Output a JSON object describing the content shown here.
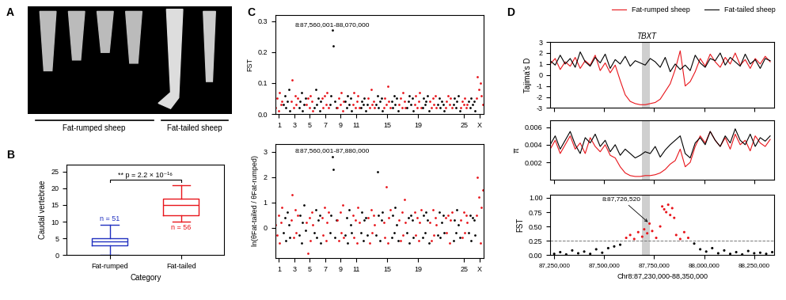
{
  "image": {
    "panel": "A",
    "groups": [
      "Fat-rumped sheep",
      "Fat-tailed sheep"
    ]
  },
  "chart_data": [
    {
      "panel": "B",
      "type": "box",
      "categories": [
        "Fat-rumped",
        "Fat-tailed"
      ],
      "xlabel": "Category",
      "ylabel": "Caudal vertebrae",
      "boxes": [
        {
          "whislo": 0,
          "q1": 3,
          "med": 4,
          "q3": 5,
          "whishi": 9
        },
        {
          "whislo": 10,
          "q1": 12,
          "med": 15,
          "q3": 17,
          "whishi": 21
        }
      ],
      "n_labels": [
        "n = 51",
        "n = 56"
      ],
      "colors": [
        "#2030c0",
        "#e8151b"
      ],
      "annotation": "** p = 2.2 × 10⁻¹⁶",
      "ylim": [
        0,
        27
      ],
      "yticks": [
        0,
        5,
        10,
        15,
        20,
        25
      ]
    },
    {
      "panel": "C",
      "type": "scatter",
      "ylabel": "FST",
      "categories": [
        "1",
        null,
        "3",
        null,
        "5",
        null,
        "7",
        null,
        "9",
        null,
        "11",
        null,
        null,
        null,
        "15",
        null,
        null,
        null,
        "19",
        null,
        null,
        null,
        null,
        null,
        "25",
        null,
        "X"
      ],
      "colors": [
        "#e8151b",
        "#000000"
      ],
      "values": [
        [
          0.02,
          0.05,
          0.01,
          0.07,
          0.03,
          0.04
        ],
        [
          0.03,
          0.06,
          0.02,
          0.04,
          0.08,
          0.01
        ],
        [
          0.04,
          0.11,
          0.02,
          0.06,
          0.03,
          0.05
        ],
        [
          0.02,
          0.04,
          0.07,
          0.01,
          0.03,
          0.05
        ],
        [
          0.03,
          0.05,
          0.02,
          0.06,
          0.04,
          0.01
        ],
        [
          0.02,
          0.08,
          0.03,
          0.05,
          0.01,
          0.04
        ],
        [
          0.05,
          0.02,
          0.06,
          0.03,
          0.07,
          0.02
        ],
        [
          0.03,
          0.06,
          0.27,
          0.22,
          0.04,
          0.02
        ],
        [
          0.02,
          0.05,
          0.03,
          0.07,
          0.01,
          0.04
        ],
        [
          0.04,
          0.02,
          0.06,
          0.03,
          0.05,
          0.01
        ],
        [
          0.03,
          0.07,
          0.02,
          0.04,
          0.06,
          0.02
        ],
        [
          0.02,
          0.04,
          0.03,
          0.05,
          0.01,
          0.03
        ],
        [
          0.05,
          0.02,
          0.08,
          0.03,
          0.04,
          0.02
        ],
        [
          0.03,
          0.06,
          0.02,
          0.04,
          0.05,
          0.01
        ],
        [
          0.02,
          0.05,
          0.03,
          0.09,
          0.04,
          0.02
        ],
        [
          0.04,
          0.02,
          0.06,
          0.03,
          0.05,
          0.01
        ],
        [
          0.03,
          0.05,
          0.02,
          0.07,
          0.04,
          0.02
        ],
        [
          0.02,
          0.04,
          0.06,
          0.03,
          0.05,
          0.01
        ],
        [
          0.03,
          0.06,
          0.02,
          0.04,
          0.07,
          0.02
        ],
        [
          0.02,
          0.05,
          0.03,
          0.04,
          0.06,
          0.01
        ],
        [
          0.04,
          0.02,
          0.05,
          0.03,
          0.06,
          0.02
        ],
        [
          0.03,
          0.05,
          0.02,
          0.04,
          0.03,
          0.01
        ],
        [
          0.02,
          0.04,
          0.06,
          0.03,
          0.05,
          0.02
        ],
        [
          0.03,
          0.05,
          0.02,
          0.04,
          0.06,
          0.01
        ],
        [
          0.02,
          0.04,
          0.03,
          0.05,
          0.02,
          0.03
        ],
        [
          0.04,
          0.02,
          0.05,
          0.03,
          0.04,
          0.01
        ],
        [
          0.05,
          0.12,
          0.08,
          0.1,
          0.06,
          0.03
        ]
      ],
      "annotation": "8:87,560,001-88,070,000",
      "ylim": [
        0,
        0.32
      ],
      "yticks": [
        {
          "value": 0,
          "label": "0.0"
        },
        0.1,
        0.2,
        0.3
      ]
    },
    {
      "panel": "C",
      "type": "scatter",
      "ylabel": "ln(θFat-tailed / θFat-rumped)",
      "categories": [
        "1",
        null,
        "3",
        null,
        "5",
        null,
        "7",
        null,
        "9",
        null,
        "11",
        null,
        null,
        null,
        "15",
        null,
        null,
        null,
        "19",
        null,
        null,
        null,
        null,
        null,
        "25",
        null,
        "X"
      ],
      "colors": [
        "#e8151b",
        "#000000"
      ],
      "values": [
        [
          0.1,
          -0.3,
          0.5,
          -0.6,
          0.2,
          0.8
        ],
        [
          -0.2,
          0.4,
          -0.5,
          0.6,
          0.1,
          -0.4
        ],
        [
          0.3,
          1.3,
          -0.4,
          0.7,
          -0.2,
          0.5
        ],
        [
          -0.3,
          0.5,
          -0.6,
          0.2,
          0.9,
          -0.1
        ],
        [
          0.2,
          -1.0,
          0.4,
          -0.5,
          0.6,
          0.1
        ],
        [
          -0.2,
          0.7,
          -0.4,
          0.3,
          0.5,
          -0.6
        ],
        [
          0.4,
          -0.3,
          0.8,
          -0.5,
          0.2,
          0.6
        ],
        [
          -0.2,
          0.5,
          2.8,
          2.3,
          -0.4,
          0.3
        ],
        [
          0.3,
          -0.5,
          0.6,
          -0.2,
          0.9,
          -0.4
        ],
        [
          -0.3,
          0.4,
          -0.6,
          0.7,
          0.1,
          -0.2
        ],
        [
          0.5,
          -0.4,
          0.3,
          -0.6,
          0.8,
          0.2
        ],
        [
          -0.2,
          0.6,
          -0.5,
          0.3,
          0.4,
          -0.3
        ],
        [
          0.4,
          -0.6,
          0.7,
          -0.2,
          0.5,
          0.1
        ],
        [
          -0.3,
          2.2,
          0.5,
          -0.5,
          0.3,
          0.6
        ],
        [
          0.2,
          -0.4,
          1.6,
          -0.6,
          0.4,
          0.7
        ],
        [
          -0.4,
          0.5,
          -0.2,
          0.8,
          0.1,
          -0.5
        ],
        [
          0.3,
          -0.5,
          0.6,
          -0.3,
          1.1,
          0.2
        ],
        [
          -0.2,
          0.4,
          -0.6,
          0.5,
          0.3,
          -0.4
        ],
        [
          0.6,
          -0.3,
          0.4,
          -0.5,
          0.2,
          0.7
        ],
        [
          -0.4,
          0.5,
          -0.2,
          0.6,
          0.3,
          -0.6
        ],
        [
          0.2,
          -0.5,
          0.7,
          -0.3,
          0.4,
          0.1
        ],
        [
          -0.3,
          0.6,
          -0.4,
          0.2,
          0.5,
          -0.2
        ],
        [
          0.4,
          -0.2,
          0.5,
          -0.6,
          0.3,
          0.6
        ],
        [
          -0.5,
          0.3,
          -0.2,
          0.7,
          0.1,
          -0.4
        ],
        [
          0.3,
          -0.4,
          0.6,
          -0.2,
          0.5,
          0.2
        ],
        [
          -0.2,
          0.5,
          -0.5,
          0.4,
          0.3,
          -0.3
        ],
        [
          0.5,
          2.0,
          1.2,
          -0.6,
          0.8,
          1.5
        ]
      ],
      "annotation": "8:87,560,001-87,880,000",
      "ylim": [
        -1.2,
        3.3
      ],
      "yticks": [
        0,
        1,
        2,
        3
      ]
    },
    {
      "panel": "D",
      "type": "line",
      "legend": "upper right",
      "x": [
        87230000,
        87255000,
        87280000,
        87305000,
        87330000,
        87355000,
        87380000,
        87405000,
        87430000,
        87455000,
        87480000,
        87505000,
        87530000,
        87555000,
        87580000,
        87605000,
        87630000,
        87655000,
        87680000,
        87705000,
        87730000,
        87755000,
        87780000,
        87805000,
        87830000,
        87855000,
        87880000,
        87905000,
        87930000,
        87955000,
        87980000,
        88005000,
        88030000,
        88055000,
        88080000,
        88105000,
        88130000,
        88155000,
        88180000,
        88205000,
        88230000,
        88255000,
        88280000,
        88305000,
        88330000
      ],
      "series": [
        {
          "name": "Fat-rumped sheep",
          "color": "#e8151b",
          "tajima_d": [
            1.0,
            1.5,
            0.5,
            1.2,
            0.8,
            1.6,
            0.6,
            1.3,
            0.9,
            1.8,
            0.4,
            1.1,
            0.2,
            0.9,
            -0.5,
            -1.8,
            -2.4,
            -2.6,
            -2.7,
            -2.7,
            -2.6,
            -2.5,
            -2.2,
            -1.5,
            -0.8,
            0.5,
            2.2,
            -1.0,
            -0.6,
            0.3,
            1.5,
            0.8,
            1.9,
            1.2,
            0.7,
            1.6,
            1.0,
            2.0,
            0.9,
            1.4,
            0.6,
            1.5,
            1.0,
            1.7,
            1.2
          ],
          "pi": [
            0.0035,
            0.0045,
            0.003,
            0.004,
            0.005,
            0.0035,
            0.0042,
            0.003,
            0.0048,
            0.0038,
            0.0032,
            0.004,
            0.0028,
            0.0025,
            0.0015,
            0.0008,
            0.0005,
            0.0004,
            0.0004,
            0.0005,
            0.0005,
            0.0006,
            0.0008,
            0.0012,
            0.0018,
            0.0022,
            0.0035,
            0.0015,
            0.002,
            0.0038,
            0.005,
            0.0042,
            0.0055,
            0.0045,
            0.0038,
            0.0048,
            0.0035,
            0.0052,
            0.004,
            0.0045,
            0.0033,
            0.005,
            0.0042,
            0.0038,
            0.0046
          ]
        },
        {
          "name": "Fat-tailed sheep",
          "color": "#000000",
          "tajima_d": [
            1.3,
            0.9,
            1.8,
            1.0,
            1.5,
            0.7,
            2.1,
            1.2,
            0.8,
            1.6,
            1.1,
            1.9,
            0.6,
            1.4,
            1.0,
            1.7,
            0.8,
            1.3,
            1.1,
            0.9,
            1.5,
            1.2,
            0.7,
            1.6,
            0.3,
            1.0,
            0.5,
            0.9,
            0.4,
            1.8,
            1.1,
            0.7,
            1.5,
            1.3,
            2.0,
            0.9,
            1.6,
            1.2,
            0.8,
            1.9,
            1.0,
            1.4,
            0.6,
            1.5,
            1.3
          ],
          "pi": [
            0.004,
            0.005,
            0.0035,
            0.0045,
            0.0055,
            0.004,
            0.003,
            0.0048,
            0.0042,
            0.0052,
            0.0038,
            0.0045,
            0.0032,
            0.004,
            0.0028,
            0.0035,
            0.003,
            0.0025,
            0.0028,
            0.0032,
            0.003,
            0.0038,
            0.0026,
            0.0034,
            0.004,
            0.0045,
            0.005,
            0.003,
            0.0025,
            0.0042,
            0.0048,
            0.004,
            0.0055,
            0.0045,
            0.0038,
            0.005,
            0.0042,
            0.0058,
            0.0045,
            0.004,
            0.0052,
            0.0038,
            0.0048,
            0.0044,
            0.005
          ]
        }
      ],
      "tajima_d": {
        "ylabel": "Tajima's D",
        "ylim": [
          -3,
          3
        ],
        "yticks": [
          -3,
          -2,
          -1,
          0,
          1,
          2,
          3
        ]
      },
      "pi": {
        "ylabel": "π",
        "ylim": [
          0,
          0.0068
        ],
        "yticks": [
          0.002,
          0.004,
          0.006
        ]
      },
      "fst": {
        "ylabel": "FST",
        "threshold": 0.25,
        "colors": [
          "#000000",
          "#e8151b"
        ],
        "x": [
          87250000,
          87280000,
          87310000,
          87340000,
          87370000,
          87400000,
          87430000,
          87460000,
          87490000,
          87520000,
          87550000,
          87580000,
          87610000,
          87630000,
          87650000,
          87670000,
          87690000,
          87700000,
          87715000,
          87726520,
          87740000,
          87760000,
          87780000,
          87790000,
          87800000,
          87810000,
          87820000,
          87830000,
          87840000,
          87850000,
          87860000,
          87880000,
          87900000,
          87920000,
          87950000,
          87980000,
          88010000,
          88040000,
          88070000,
          88100000,
          88130000,
          88160000,
          88190000,
          88220000,
          88250000,
          88280000,
          88310000,
          88340000
        ],
        "values": [
          0.02,
          0.05,
          0.01,
          0.08,
          0.03,
          0.06,
          0.02,
          0.1,
          0.04,
          0.12,
          0.15,
          0.18,
          0.3,
          0.35,
          0.28,
          0.4,
          0.32,
          0.45,
          0.38,
          0.55,
          0.42,
          0.3,
          0.5,
          0.85,
          0.8,
          0.75,
          0.88,
          0.7,
          0.82,
          0.65,
          0.35,
          0.28,
          0.4,
          0.3,
          0.2,
          0.1,
          0.06,
          0.12,
          0.03,
          0.08,
          0.02,
          0.05,
          0.01,
          0.07,
          0.03,
          0.04,
          0.02,
          0.05
        ],
        "annotation": {
          "text": "8:87,726,520",
          "x": 87726520
        },
        "ylim": [
          0,
          1.05
        ],
        "yticks": [
          {
            "value": 0,
            "label": "0.00"
          },
          0.25,
          {
            "value": 0.5,
            "label": "0.50"
          },
          0.75,
          {
            "value": 1,
            "label": "1.00"
          }
        ]
      },
      "gene": {
        "label": "TBXT",
        "span": [
          87690000,
          87730000
        ]
      },
      "xlim": [
        87230000,
        88350000
      ],
      "xticks": [
        {
          "value": 87250000,
          "label": "87,250,000"
        },
        {
          "value": 87500000,
          "label": "87,500,000"
        },
        {
          "value": 87750000,
          "label": "87,750,000"
        },
        {
          "value": 88000000,
          "label": "88,000,000"
        },
        {
          "value": 88250000,
          "label": "88,250,000"
        }
      ],
      "xlabel": "Chr8:87,230,000-88,350,000"
    }
  ]
}
